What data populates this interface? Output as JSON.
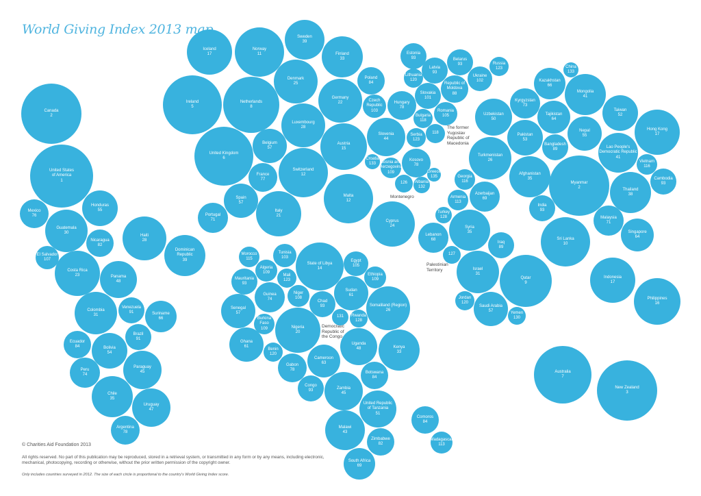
{
  "title": "World Giving Index 2013 map",
  "colors": {
    "bubble": "#38b2de",
    "title": "#4fb4df",
    "text": "#555555"
  },
  "footer": {
    "copyright": "© Charities Aid Foundation 2013",
    "rights": "All rights reserved. No part of this publication may be reproduced, stored in a retrieval system, or transmitted in any form or by any means, including electronic, mechanical, photocopying, recording or otherwise, without the prior written permission of the copyright owner.",
    "note": "Only includes countries surveyed in 2012. The size of each circle is proportional to the country's World Giving Index score."
  },
  "countries": [
    {
      "name": "Iceland",
      "rank": "17"
    },
    {
      "name": "Norway",
      "rank": "11"
    },
    {
      "name": "Sweden",
      "rank": "39"
    },
    {
      "name": "Finland",
      "rank": "33"
    },
    {
      "name": "Ireland",
      "rank": "5"
    },
    {
      "name": "Netherlands",
      "rank": "8"
    },
    {
      "name": "Denmark",
      "rank": "25"
    },
    {
      "name": "Germany",
      "rank": "22"
    },
    {
      "name": "Luxembourg",
      "rank": "28"
    },
    {
      "name": "Belgium",
      "rank": "57"
    },
    {
      "name": "United Kingdom",
      "rank": "6"
    },
    {
      "name": "Austria",
      "rank": "15"
    },
    {
      "name": "France",
      "rank": "77"
    },
    {
      "name": "Switzerland",
      "rank": "12"
    },
    {
      "name": "Spain",
      "rank": "57"
    },
    {
      "name": "Italy",
      "rank": "21"
    },
    {
      "name": "Portugal",
      "rank": "71"
    },
    {
      "name": "Malta",
      "rank": "12"
    },
    {
      "name": "Canada",
      "rank": "2"
    },
    {
      "name": "United States\nof America",
      "rank": "1"
    },
    {
      "name": "Mexico",
      "rank": "76"
    },
    {
      "name": "Honduras",
      "rank": "55"
    },
    {
      "name": "Guatemala",
      "rank": "30"
    },
    {
      "name": "Nicaragua",
      "rank": "82"
    },
    {
      "name": "Haiti",
      "rank": "28"
    },
    {
      "name": "Dominican\nRepublic",
      "rank": "39"
    },
    {
      "name": "El Salvador",
      "rank": "107"
    },
    {
      "name": "Costa Rica",
      "rank": "23"
    },
    {
      "name": "Panama",
      "rank": "48"
    },
    {
      "name": "Colombia",
      "rank": "31"
    },
    {
      "name": "Venezuela",
      "rank": "91"
    },
    {
      "name": "Suriname",
      "rank": "66"
    },
    {
      "name": "Brazil",
      "rank": "91"
    },
    {
      "name": "Ecuador",
      "rank": "84"
    },
    {
      "name": "Bolivia",
      "rank": "54"
    },
    {
      "name": "Peru",
      "rank": "74"
    },
    {
      "name": "Paraguay",
      "rank": "45"
    },
    {
      "name": "Chile",
      "rank": "35"
    },
    {
      "name": "Uruguay",
      "rank": "47"
    },
    {
      "name": "Argentina",
      "rank": "78"
    },
    {
      "name": "Morocco",
      "rank": "115"
    },
    {
      "name": "Tunisia",
      "rank": "103"
    },
    {
      "name": "State of Libya",
      "rank": "14"
    },
    {
      "name": "Algeria",
      "rank": "109"
    },
    {
      "name": "Mali",
      "rank": "123"
    },
    {
      "name": "Mauritania",
      "rank": "93"
    },
    {
      "name": "Egypt",
      "rank": "105"
    },
    {
      "name": "Ethiopia",
      "rank": "109"
    },
    {
      "name": "Guinea",
      "rank": "74"
    },
    {
      "name": "Niger",
      "rank": "108"
    },
    {
      "name": "Chad",
      "rank": "93"
    },
    {
      "name": "Sudan",
      "rank": "61"
    },
    {
      "name": "Somaliland (Region)",
      "rank": "26"
    },
    {
      "name": "Senegal",
      "rank": "57"
    },
    {
      "name": "Burkina\nFaso",
      "rank": "109"
    },
    {
      "name": "Nigeria",
      "rank": "20"
    },
    {
      "name": "Democratic\nRepublic of\nthe Congo",
      "rank": "131",
      "external": true
    },
    {
      "name": "Rwanda",
      "rank": "128"
    },
    {
      "name": "Uganda",
      "rank": "48"
    },
    {
      "name": "Kenya",
      "rank": "33"
    },
    {
      "name": "Ghana",
      "rank": "61"
    },
    {
      "name": "Benin",
      "rank": "120"
    },
    {
      "name": "Gabon",
      "rank": "78"
    },
    {
      "name": "Cameroon",
      "rank": "63"
    },
    {
      "name": "Botswana",
      "rank": "84"
    },
    {
      "name": "Congo",
      "rank": "93"
    },
    {
      "name": "Zambia",
      "rank": "45"
    },
    {
      "name": "United Republic\nof Tanzania",
      "rank": "51"
    },
    {
      "name": "Comoros",
      "rank": "84"
    },
    {
      "name": "Malawi",
      "rank": "43"
    },
    {
      "name": "Zimbabwe",
      "rank": "82"
    },
    {
      "name": "Madagascar",
      "rank": "113"
    },
    {
      "name": "South Africa",
      "rank": "69"
    },
    {
      "name": "Estonia",
      "rank": "93"
    },
    {
      "name": "Poland",
      "rank": "84"
    },
    {
      "name": "Latvia",
      "rank": "93"
    },
    {
      "name": "Belarus",
      "rank": "93"
    },
    {
      "name": "Russia",
      "rank": "123"
    },
    {
      "name": "Lithuania",
      "rank": "120"
    },
    {
      "name": "Ukraine",
      "rank": "102"
    },
    {
      "name": "Republic of\nMoldova",
      "rank": "88"
    },
    {
      "name": "Slovakia",
      "rank": "101"
    },
    {
      "name": "Czech\nRepublic",
      "rank": "103"
    },
    {
      "name": "Hungary",
      "rank": "78"
    },
    {
      "name": "Romania",
      "rank": "105"
    },
    {
      "name": "Bulgaria",
      "rank": "118"
    },
    {
      "name": "Slovenia",
      "rank": "44"
    },
    {
      "name": "Serbia",
      "rank": "123"
    },
    {
      "name": "The former\nYugoslav\nRepublic of\nMacedonia",
      "rank": "118",
      "external": true
    },
    {
      "name": "Croatia",
      "rank": "133"
    },
    {
      "name": "Bosnia and\nHerzegovina",
      "rank": "109"
    },
    {
      "name": "Kosovo",
      "rank": "78"
    },
    {
      "name": "Greece",
      "rank": "135"
    },
    {
      "name": "Montenegro",
      "rank": "126",
      "external": true
    },
    {
      "name": "Albania",
      "rank": "132"
    },
    {
      "name": "Georgia",
      "rank": "116"
    },
    {
      "name": "Cyprus",
      "rank": "24"
    },
    {
      "name": "Armenia",
      "rank": "113"
    },
    {
      "name": "Azerbaijan",
      "rank": "69"
    },
    {
      "name": "Turkey",
      "rank": "128"
    },
    {
      "name": "Syria",
      "rank": "35"
    },
    {
      "name": "Lebanon",
      "rank": "68"
    },
    {
      "name": "Iraq",
      "rank": "89"
    },
    {
      "name": "Palestinian\nTerritory",
      "rank": "127",
      "external": true
    },
    {
      "name": "Israel",
      "rank": "31"
    },
    {
      "name": "Qatar",
      "rank": "9"
    },
    {
      "name": "Jordan",
      "rank": "120"
    },
    {
      "name": "Saudi Arabia",
      "rank": "57"
    },
    {
      "name": "Yemen",
      "rank": "130"
    },
    {
      "name": "Indonesia",
      "rank": "17"
    },
    {
      "name": "Philippines",
      "rank": "16"
    },
    {
      "name": "Australia",
      "rank": "7"
    },
    {
      "name": "New Zealand",
      "rank": "3"
    },
    {
      "name": "Sri Lanka",
      "rank": "10"
    },
    {
      "name": "Uzbekistan",
      "rank": "50"
    },
    {
      "name": "Kyrgyzstan",
      "rank": "73"
    },
    {
      "name": "Kazakhstan",
      "rank": "66"
    },
    {
      "name": "China",
      "rank": "133"
    },
    {
      "name": "Mongolia",
      "rank": "41"
    },
    {
      "name": "Tajikistan",
      "rank": "64"
    },
    {
      "name": "Pakistan",
      "rank": "53"
    },
    {
      "name": "Taiwan",
      "rank": "52"
    },
    {
      "name": "Nepal",
      "rank": "55"
    },
    {
      "name": "Hong Kong",
      "rank": "17"
    },
    {
      "name": "Bangladesh",
      "rank": "89"
    },
    {
      "name": "Turkmenistan",
      "rank": "26"
    },
    {
      "name": "Lao People's\nDemocratic Republic",
      "rank": "41"
    },
    {
      "name": "Vietnam",
      "rank": "116"
    },
    {
      "name": "Afghanistan",
      "rank": "35"
    },
    {
      "name": "Myanmar",
      "rank": "2"
    },
    {
      "name": "Cambodia",
      "rank": "93"
    },
    {
      "name": "Thailand",
      "rank": "38"
    },
    {
      "name": "India",
      "rank": "93"
    },
    {
      "name": "Malaysia",
      "rank": "71"
    },
    {
      "name": "Singapore",
      "rank": "64"
    }
  ]
}
